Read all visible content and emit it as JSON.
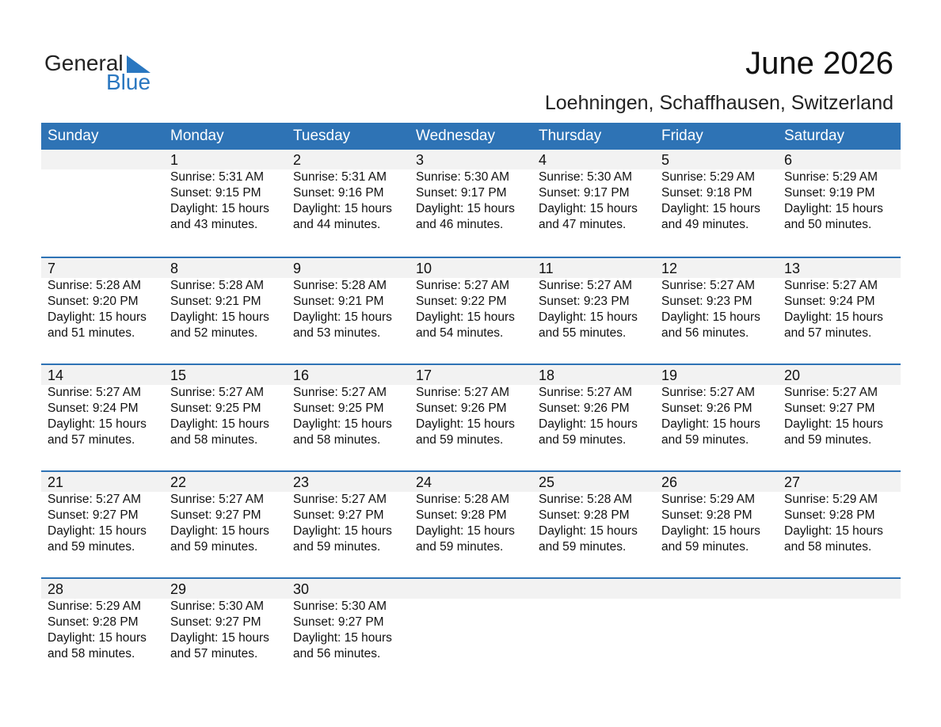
{
  "logo": {
    "general": "General",
    "blue": "Blue"
  },
  "title": "June 2026",
  "subtitle": "Loehningen, Schaffhausen, Switzerland",
  "colors": {
    "accent": "#2e73b5",
    "strip": "#f2f2f2"
  },
  "weekdays": [
    "Sunday",
    "Monday",
    "Tuesday",
    "Wednesday",
    "Thursday",
    "Friday",
    "Saturday"
  ],
  "weeks": [
    [
      null,
      {
        "day": "1",
        "sunrise": "Sunrise: 5:31 AM",
        "sunset": "Sunset: 9:15 PM",
        "daylight": "Daylight: 15 hours",
        "minutes": "and 43 minutes."
      },
      {
        "day": "2",
        "sunrise": "Sunrise: 5:31 AM",
        "sunset": "Sunset: 9:16 PM",
        "daylight": "Daylight: 15 hours",
        "minutes": "and 44 minutes."
      },
      {
        "day": "3",
        "sunrise": "Sunrise: 5:30 AM",
        "sunset": "Sunset: 9:17 PM",
        "daylight": "Daylight: 15 hours",
        "minutes": "and 46 minutes."
      },
      {
        "day": "4",
        "sunrise": "Sunrise: 5:30 AM",
        "sunset": "Sunset: 9:17 PM",
        "daylight": "Daylight: 15 hours",
        "minutes": "and 47 minutes."
      },
      {
        "day": "5",
        "sunrise": "Sunrise: 5:29 AM",
        "sunset": "Sunset: 9:18 PM",
        "daylight": "Daylight: 15 hours",
        "minutes": "and 49 minutes."
      },
      {
        "day": "6",
        "sunrise": "Sunrise: 5:29 AM",
        "sunset": "Sunset: 9:19 PM",
        "daylight": "Daylight: 15 hours",
        "minutes": "and 50 minutes."
      }
    ],
    [
      {
        "day": "7",
        "sunrise": "Sunrise: 5:28 AM",
        "sunset": "Sunset: 9:20 PM",
        "daylight": "Daylight: 15 hours",
        "minutes": "and 51 minutes."
      },
      {
        "day": "8",
        "sunrise": "Sunrise: 5:28 AM",
        "sunset": "Sunset: 9:21 PM",
        "daylight": "Daylight: 15 hours",
        "minutes": "and 52 minutes."
      },
      {
        "day": "9",
        "sunrise": "Sunrise: 5:28 AM",
        "sunset": "Sunset: 9:21 PM",
        "daylight": "Daylight: 15 hours",
        "minutes": "and 53 minutes."
      },
      {
        "day": "10",
        "sunrise": "Sunrise: 5:27 AM",
        "sunset": "Sunset: 9:22 PM",
        "daylight": "Daylight: 15 hours",
        "minutes": "and 54 minutes."
      },
      {
        "day": "11",
        "sunrise": "Sunrise: 5:27 AM",
        "sunset": "Sunset: 9:23 PM",
        "daylight": "Daylight: 15 hours",
        "minutes": "and 55 minutes."
      },
      {
        "day": "12",
        "sunrise": "Sunrise: 5:27 AM",
        "sunset": "Sunset: 9:23 PM",
        "daylight": "Daylight: 15 hours",
        "minutes": "and 56 minutes."
      },
      {
        "day": "13",
        "sunrise": "Sunrise: 5:27 AM",
        "sunset": "Sunset: 9:24 PM",
        "daylight": "Daylight: 15 hours",
        "minutes": "and 57 minutes."
      }
    ],
    [
      {
        "day": "14",
        "sunrise": "Sunrise: 5:27 AM",
        "sunset": "Sunset: 9:24 PM",
        "daylight": "Daylight: 15 hours",
        "minutes": "and 57 minutes."
      },
      {
        "day": "15",
        "sunrise": "Sunrise: 5:27 AM",
        "sunset": "Sunset: 9:25 PM",
        "daylight": "Daylight: 15 hours",
        "minutes": "and 58 minutes."
      },
      {
        "day": "16",
        "sunrise": "Sunrise: 5:27 AM",
        "sunset": "Sunset: 9:25 PM",
        "daylight": "Daylight: 15 hours",
        "minutes": "and 58 minutes."
      },
      {
        "day": "17",
        "sunrise": "Sunrise: 5:27 AM",
        "sunset": "Sunset: 9:26 PM",
        "daylight": "Daylight: 15 hours",
        "minutes": "and 59 minutes."
      },
      {
        "day": "18",
        "sunrise": "Sunrise: 5:27 AM",
        "sunset": "Sunset: 9:26 PM",
        "daylight": "Daylight: 15 hours",
        "minutes": "and 59 minutes."
      },
      {
        "day": "19",
        "sunrise": "Sunrise: 5:27 AM",
        "sunset": "Sunset: 9:26 PM",
        "daylight": "Daylight: 15 hours",
        "minutes": "and 59 minutes."
      },
      {
        "day": "20",
        "sunrise": "Sunrise: 5:27 AM",
        "sunset": "Sunset: 9:27 PM",
        "daylight": "Daylight: 15 hours",
        "minutes": "and 59 minutes."
      }
    ],
    [
      {
        "day": "21",
        "sunrise": "Sunrise: 5:27 AM",
        "sunset": "Sunset: 9:27 PM",
        "daylight": "Daylight: 15 hours",
        "minutes": "and 59 minutes."
      },
      {
        "day": "22",
        "sunrise": "Sunrise: 5:27 AM",
        "sunset": "Sunset: 9:27 PM",
        "daylight": "Daylight: 15 hours",
        "minutes": "and 59 minutes."
      },
      {
        "day": "23",
        "sunrise": "Sunrise: 5:27 AM",
        "sunset": "Sunset: 9:27 PM",
        "daylight": "Daylight: 15 hours",
        "minutes": "and 59 minutes."
      },
      {
        "day": "24",
        "sunrise": "Sunrise: 5:28 AM",
        "sunset": "Sunset: 9:28 PM",
        "daylight": "Daylight: 15 hours",
        "minutes": "and 59 minutes."
      },
      {
        "day": "25",
        "sunrise": "Sunrise: 5:28 AM",
        "sunset": "Sunset: 9:28 PM",
        "daylight": "Daylight: 15 hours",
        "minutes": "and 59 minutes."
      },
      {
        "day": "26",
        "sunrise": "Sunrise: 5:29 AM",
        "sunset": "Sunset: 9:28 PM",
        "daylight": "Daylight: 15 hours",
        "minutes": "and 59 minutes."
      },
      {
        "day": "27",
        "sunrise": "Sunrise: 5:29 AM",
        "sunset": "Sunset: 9:28 PM",
        "daylight": "Daylight: 15 hours",
        "minutes": "and 58 minutes."
      }
    ],
    [
      {
        "day": "28",
        "sunrise": "Sunrise: 5:29 AM",
        "sunset": "Sunset: 9:28 PM",
        "daylight": "Daylight: 15 hours",
        "minutes": "and 58 minutes."
      },
      {
        "day": "29",
        "sunrise": "Sunrise: 5:30 AM",
        "sunset": "Sunset: 9:27 PM",
        "daylight": "Daylight: 15 hours",
        "minutes": "and 57 minutes."
      },
      {
        "day": "30",
        "sunrise": "Sunrise: 5:30 AM",
        "sunset": "Sunset: 9:27 PM",
        "daylight": "Daylight: 15 hours",
        "minutes": "and 56 minutes."
      },
      null,
      null,
      null,
      null
    ]
  ]
}
